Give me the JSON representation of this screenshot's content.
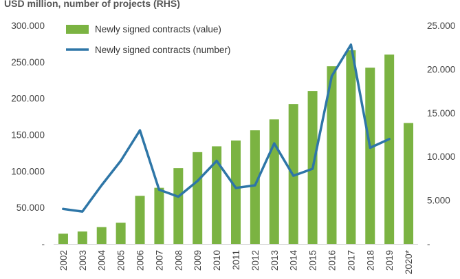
{
  "chart_data": {
    "type": "bar",
    "subtitle": "USD million, number of projects (RHS)",
    "categories": [
      "2002",
      "2003",
      "2004",
      "2005",
      "2006",
      "2007",
      "2008",
      "2009",
      "2010",
      "2011",
      "2012",
      "2013",
      "2014",
      "2015",
      "2016",
      "2017",
      "2018",
      "2019",
      "2020*"
    ],
    "series": [
      {
        "name": "Newly signed contracts (value)",
        "type": "bar",
        "axis": "left",
        "color": "#7bb342",
        "values": [
          14000,
          17000,
          23000,
          29000,
          66000,
          77000,
          104000,
          126000,
          134000,
          142000,
          156000,
          171000,
          192000,
          210000,
          244000,
          266000,
          242000,
          260000,
          166000
        ]
      },
      {
        "name": "Newly signed contracts (number)",
        "type": "line",
        "axis": "right",
        "color": "#2e76a7",
        "values": [
          4000,
          3700,
          6700,
          9500,
          13000,
          6200,
          5400,
          7200,
          9500,
          6400,
          6700,
          11500,
          7800,
          8600,
          19200,
          22800,
          11000,
          12000,
          null
        ]
      }
    ],
    "y_left": {
      "ylim": [
        0,
        300000
      ],
      "tick_values": [
        0,
        50000,
        100000,
        150000,
        200000,
        250000,
        300000
      ],
      "tick_labels": [
        "-",
        "50.000",
        "100.000",
        "150.000",
        "200.000",
        "250.000",
        "300.000"
      ]
    },
    "y_right": {
      "ylim": [
        0,
        25000
      ],
      "tick_values": [
        0,
        5000,
        10000,
        15000,
        20000,
        25000
      ],
      "tick_labels": [
        "-",
        "5.000",
        "10.000",
        "15.000",
        "20.000",
        "25.000"
      ]
    },
    "legend_position": "top-left",
    "grid": false
  }
}
